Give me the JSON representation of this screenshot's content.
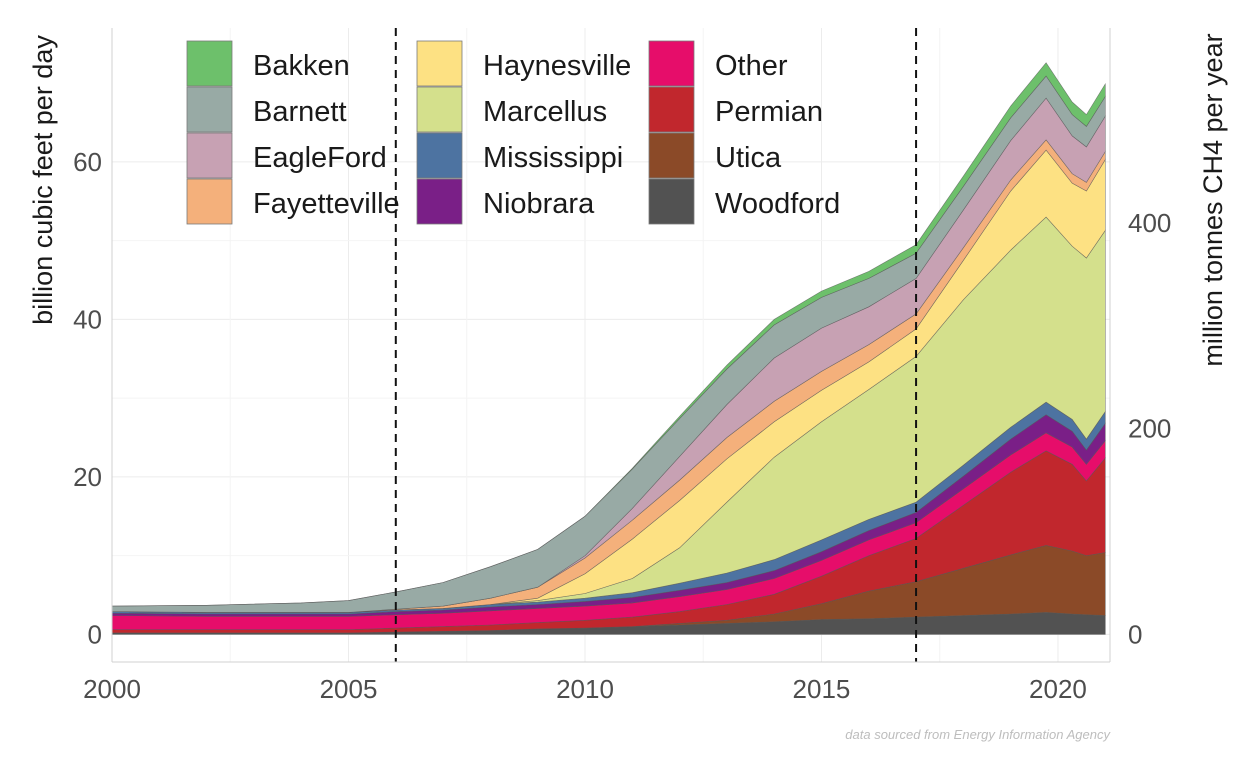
{
  "chart_data": {
    "type": "area",
    "stacked": true,
    "xlabel": "",
    "ylabel": "billion cubic feet per day",
    "y2label": "million tonnes CH4 per year",
    "caption": "data sourced from Energy Information Agency",
    "xlim": [
      2000,
      2021.1
    ],
    "ylim": [
      -3.5,
      77
    ],
    "y2lim": [
      -27,
      590
    ],
    "x_ticks": [
      2000,
      2005,
      2010,
      2015,
      2020
    ],
    "y_ticks": [
      0,
      20,
      40,
      60
    ],
    "y2_ticks": [
      0,
      200,
      400
    ],
    "vlines": [
      2006,
      2017
    ],
    "grid": true,
    "legend_position": "top-left, inside, 3 columns",
    "legend_order": [
      "Bakken",
      "Barnett",
      "EagleFord",
      "Fayetteville",
      "Haynesville",
      "Marcellus",
      "Mississippi",
      "Niobrara",
      "Other",
      "Permian",
      "Utica",
      "Woodford"
    ],
    "x": [
      2000,
      2002,
      2004,
      2005,
      2006,
      2007,
      2008,
      2009,
      2010,
      2011,
      2012,
      2013,
      2014,
      2015,
      2016,
      2017,
      2018,
      2019,
      2019.75,
      2020.3,
      2020.6,
      2021
    ],
    "series": [
      {
        "name": "Woodford",
        "color": "#525252",
        "values": [
          0.2,
          0.2,
          0.2,
          0.2,
          0.3,
          0.4,
          0.5,
          0.7,
          0.8,
          1.0,
          1.2,
          1.4,
          1.6,
          1.9,
          2.0,
          2.2,
          2.4,
          2.6,
          2.8,
          2.6,
          2.5,
          2.4
        ]
      },
      {
        "name": "Utica",
        "color": "#8b4a28",
        "values": [
          0,
          0,
          0,
          0,
          0,
          0,
          0,
          0,
          0,
          0,
          0.2,
          0.4,
          1.0,
          2.0,
          3.5,
          4.5,
          6.0,
          7.5,
          8.5,
          8.0,
          7.5,
          8.0
        ]
      },
      {
        "name": "Permian",
        "color": "#c1272d",
        "values": [
          0.4,
          0.4,
          0.4,
          0.4,
          0.5,
          0.6,
          0.7,
          0.8,
          1.0,
          1.2,
          1.5,
          2.0,
          2.5,
          3.5,
          4.5,
          5.5,
          8.0,
          10.5,
          12.0,
          11.0,
          9.5,
          12.0
        ]
      },
      {
        "name": "Other",
        "color": "#e60d6a",
        "values": [
          1.8,
          1.7,
          1.7,
          1.7,
          1.7,
          1.7,
          1.8,
          1.8,
          1.8,
          1.8,
          1.9,
          1.9,
          2.0,
          2.0,
          2.0,
          2.0,
          2.1,
          2.2,
          2.3,
          2.2,
          2.1,
          2.2
        ]
      },
      {
        "name": "Niobrara",
        "color": "#7a1f87",
        "values": [
          0.3,
          0.3,
          0.3,
          0.3,
          0.4,
          0.4,
          0.5,
          0.5,
          0.6,
          0.7,
          0.8,
          0.9,
          1.0,
          1.1,
          1.2,
          1.3,
          1.6,
          2.0,
          2.3,
          2.0,
          1.8,
          2.2
        ]
      },
      {
        "name": "Mississippi",
        "color": "#4d73a1",
        "values": [
          0.2,
          0.2,
          0.2,
          0.2,
          0.2,
          0.2,
          0.3,
          0.3,
          0.4,
          0.6,
          0.9,
          1.2,
          1.4,
          1.5,
          1.4,
          1.3,
          1.4,
          1.5,
          1.6,
          1.5,
          1.4,
          1.5
        ]
      },
      {
        "name": "Marcellus",
        "color": "#d4e08c",
        "values": [
          0,
          0,
          0,
          0,
          0,
          0,
          0,
          0.2,
          0.6,
          1.8,
          4.5,
          9.0,
          13.0,
          15.0,
          16.5,
          18.5,
          21.0,
          22.5,
          23.5,
          22.0,
          23.0,
          23.0
        ]
      },
      {
        "name": "Haynesville",
        "color": "#fde183",
        "values": [
          0,
          0,
          0,
          0,
          0,
          0,
          0,
          0.3,
          2.5,
          5.0,
          6.0,
          5.5,
          4.5,
          4.0,
          3.5,
          3.5,
          5.0,
          7.5,
          8.5,
          8.0,
          8.5,
          9.0
        ]
      },
      {
        "name": "Fayetteville",
        "color": "#f4b07b",
        "values": [
          0,
          0,
          0,
          0,
          0.1,
          0.3,
          0.8,
          1.4,
          2.0,
          2.4,
          2.6,
          2.7,
          2.6,
          2.4,
          2.2,
          1.9,
          1.6,
          1.4,
          1.3,
          1.2,
          1.1,
          1.0
        ]
      },
      {
        "name": "EagleFord",
        "color": "#c7a1b3",
        "values": [
          0,
          0,
          0,
          0,
          0,
          0,
          0,
          0,
          0.3,
          1.5,
          3.0,
          4.2,
          5.5,
          5.5,
          4.8,
          4.5,
          4.8,
          5.0,
          5.3,
          4.8,
          4.5,
          4.5
        ]
      },
      {
        "name": "Barnett",
        "color": "#98aaa5",
        "values": [
          0.7,
          0.9,
          1.2,
          1.5,
          2.2,
          3.0,
          4.0,
          4.8,
          5.0,
          5.0,
          4.8,
          4.5,
          4.2,
          3.9,
          3.6,
          3.2,
          3.0,
          2.9,
          2.8,
          2.7,
          2.6,
          2.5
        ]
      },
      {
        "name": "Bakken",
        "color": "#6dc06b",
        "values": [
          0,
          0,
          0,
          0,
          0,
          0,
          0,
          0,
          0,
          0.1,
          0.3,
          0.5,
          0.7,
          0.8,
          0.9,
          1.1,
          1.3,
          1.5,
          1.7,
          1.6,
          1.5,
          1.6
        ]
      }
    ]
  }
}
